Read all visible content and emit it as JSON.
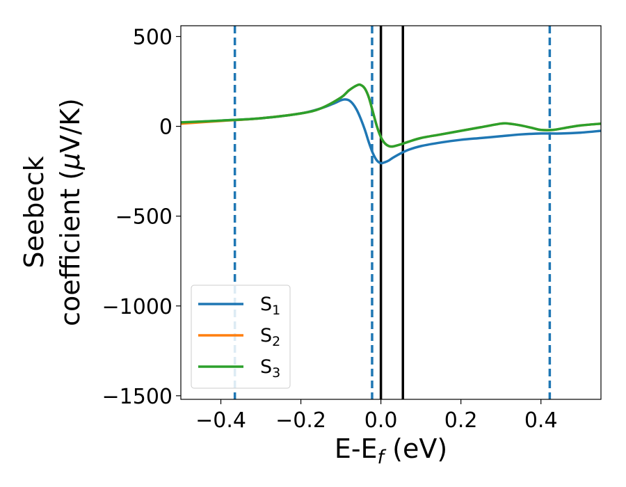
{
  "chart_data": {
    "type": "line",
    "title": "",
    "xlabel": "E-E",
    "xlabel_sub": "f",
    "xlabel_unit": " (eV)",
    "ylabel_line1": "Seebeck",
    "ylabel_line2": "coefficient  (",
    "ylabel_mu": "μ",
    "ylabel_unit": "V/K)",
    "xlim": [
      -0.5,
      0.55
    ],
    "ylim": [
      -1520,
      560
    ],
    "xticks": [
      -0.4,
      -0.2,
      0.0,
      0.2,
      0.4
    ],
    "xtick_labels": [
      "−0.4",
      "−0.2",
      "0.0",
      "0.2",
      "0.4"
    ],
    "yticks": [
      500,
      0,
      -500,
      -1000,
      -1500
    ],
    "ytick_labels": [
      "500",
      "0",
      "−500",
      "−1000",
      "−1500"
    ],
    "grid": false,
    "legend_position": "lower-left",
    "vlines_dashed": {
      "color": "#1f77b4",
      "x": [
        -0.365,
        -0.022,
        0.422
      ]
    },
    "vlines_solid": {
      "color": "#000000",
      "x": [
        0.0,
        0.055
      ]
    },
    "series": [
      {
        "name": "S",
        "sub": "1",
        "color": "#1f77b4",
        "x": [
          -0.5,
          -0.4,
          -0.3,
          -0.2,
          -0.15,
          -0.12,
          -0.1,
          -0.09,
          -0.08,
          -0.07,
          -0.06,
          -0.05,
          -0.04,
          -0.03,
          -0.02,
          -0.01,
          0.0,
          0.01,
          0.02,
          0.03,
          0.05,
          0.07,
          0.1,
          0.15,
          0.2,
          0.25,
          0.3,
          0.35,
          0.4,
          0.45,
          0.5,
          0.55
        ],
        "y": [
          20,
          32,
          45,
          72,
          100,
          125,
          145,
          150,
          145,
          125,
          90,
          40,
          -20,
          -90,
          -150,
          -190,
          -205,
          -200,
          -190,
          -175,
          -150,
          -130,
          -110,
          -90,
          -75,
          -65,
          -55,
          -45,
          -40,
          -40,
          -35,
          -25
        ]
      },
      {
        "name": "S",
        "sub": "2",
        "color": "#ff7f0e",
        "x": [
          -0.5,
          -0.4,
          -0.3,
          -0.2,
          -0.15,
          -0.1,
          -0.08,
          -0.06,
          -0.05,
          -0.04,
          -0.03,
          -0.02,
          -0.01,
          0.0,
          0.01,
          0.02,
          0.03,
          0.05,
          0.07,
          0.1,
          0.15,
          0.2,
          0.25,
          0.3,
          0.32,
          0.35,
          0.38,
          0.4,
          0.43,
          0.47,
          0.5,
          0.55
        ],
        "y": [
          15,
          30,
          45,
          72,
          100,
          160,
          200,
          228,
          230,
          210,
          160,
          80,
          0,
          -60,
          -95,
          -110,
          -112,
          -100,
          -85,
          -65,
          -45,
          -25,
          -5,
          15,
          15,
          5,
          -10,
          -20,
          -20,
          -5,
          5,
          15
        ]
      },
      {
        "name": "S",
        "sub": "3",
        "color": "#2ca02c",
        "x": [
          -0.5,
          -0.4,
          -0.3,
          -0.2,
          -0.15,
          -0.1,
          -0.08,
          -0.06,
          -0.05,
          -0.04,
          -0.03,
          -0.02,
          -0.01,
          0.0,
          0.01,
          0.02,
          0.03,
          0.05,
          0.07,
          0.1,
          0.15,
          0.2,
          0.25,
          0.3,
          0.32,
          0.35,
          0.38,
          0.4,
          0.43,
          0.47,
          0.5,
          0.55
        ],
        "y": [
          22,
          32,
          45,
          72,
          100,
          160,
          200,
          228,
          230,
          210,
          160,
          80,
          0,
          -60,
          -95,
          -110,
          -112,
          -100,
          -85,
          -65,
          -45,
          -25,
          -5,
          15,
          15,
          5,
          -10,
          -20,
          -20,
          -5,
          5,
          15
        ]
      }
    ]
  }
}
